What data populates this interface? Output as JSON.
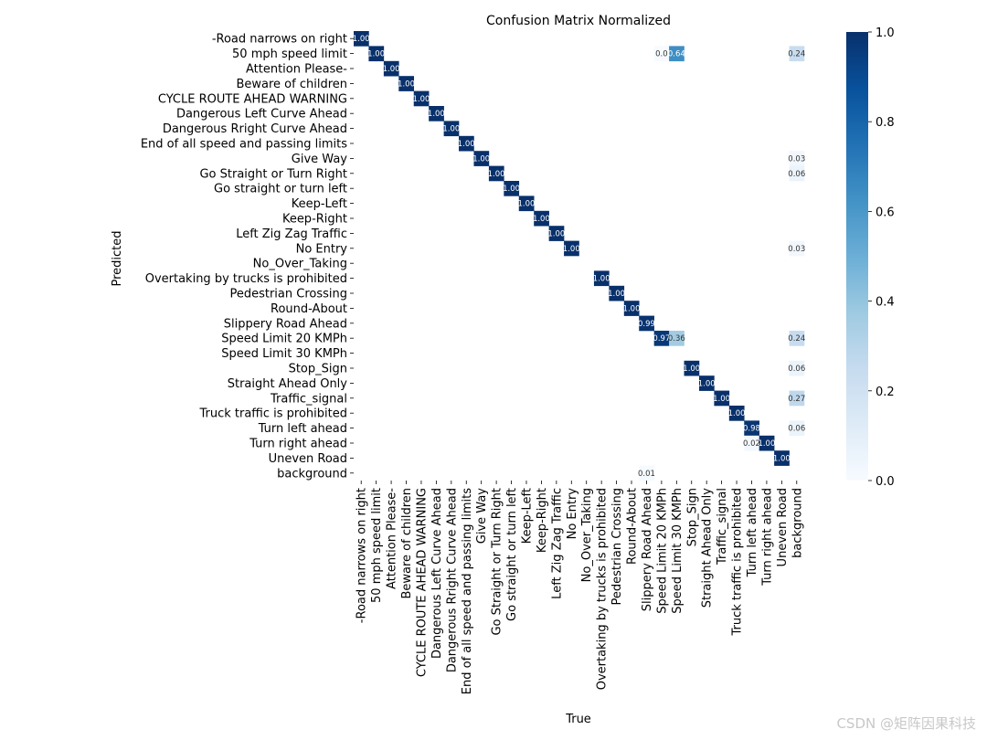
{
  "chart_data": {
    "type": "heatmap",
    "title": "Confusion Matrix Normalized",
    "xlabel": "True",
    "ylabel": "Predicted",
    "colormap": "Blues",
    "colors": {
      "low": "#f7fbff",
      "high": "#08306b"
    },
    "vmin": 0.0,
    "vmax": 1.0,
    "colorbar_ticks": [
      "0.0",
      "0.2",
      "0.4",
      "0.6",
      "0.8",
      "1.0"
    ],
    "labels": [
      "-Road narrows on right",
      "50 mph speed limit",
      "Attention Please-",
      "Beware of children",
      "CYCLE ROUTE AHEAD WARNING",
      "Dangerous Left Curve Ahead",
      "Dangerous Rright Curve Ahead",
      "End of all speed and passing limits",
      "Give Way",
      "Go Straight or Turn Right",
      "Go straight or turn left",
      "Keep-Left",
      "Keep-Right",
      "Left Zig Zag Traffic",
      "No Entry",
      "No_Over_Taking",
      "Overtaking by trucks is prohibited",
      "Pedestrian Crossing",
      "Round-About",
      "Slippery Road Ahead",
      "Speed Limit 20 KMPh",
      "Speed Limit 30 KMPh",
      "Stop_Sign",
      "Straight Ahead Only",
      "Traffic_signal",
      "Truck traffic is prohibited",
      "Turn left ahead",
      "Turn right ahead",
      "Uneven Road",
      "background"
    ],
    "cells": [
      {
        "row": 0,
        "col": 0,
        "value": 1.0,
        "label": "1.00"
      },
      {
        "row": 1,
        "col": 1,
        "value": 1.0,
        "label": "1.00"
      },
      {
        "row": 1,
        "col": 20,
        "value": 0.0,
        "label": "0.0"
      },
      {
        "row": 1,
        "col": 21,
        "value": 0.64,
        "label": "0.64"
      },
      {
        "row": 1,
        "col": 29,
        "value": 0.24,
        "label": "0.24"
      },
      {
        "row": 2,
        "col": 2,
        "value": 1.0,
        "label": "1.00"
      },
      {
        "row": 3,
        "col": 3,
        "value": 1.0,
        "label": "1.00"
      },
      {
        "row": 4,
        "col": 4,
        "value": 1.0,
        "label": "1.00"
      },
      {
        "row": 5,
        "col": 5,
        "value": 1.0,
        "label": "1.00"
      },
      {
        "row": 6,
        "col": 6,
        "value": 1.0,
        "label": "1.00"
      },
      {
        "row": 7,
        "col": 7,
        "value": 1.0,
        "label": "1.00"
      },
      {
        "row": 8,
        "col": 8,
        "value": 1.0,
        "label": "1.00"
      },
      {
        "row": 8,
        "col": 29,
        "value": 0.03,
        "label": "0.03"
      },
      {
        "row": 9,
        "col": 9,
        "value": 1.0,
        "label": "1.00"
      },
      {
        "row": 9,
        "col": 29,
        "value": 0.06,
        "label": "0.06"
      },
      {
        "row": 10,
        "col": 10,
        "value": 1.0,
        "label": "1.00"
      },
      {
        "row": 11,
        "col": 11,
        "value": 1.0,
        "label": "1.00"
      },
      {
        "row": 12,
        "col": 12,
        "value": 1.0,
        "label": "1.00"
      },
      {
        "row": 13,
        "col": 13,
        "value": 1.0,
        "label": "1.00"
      },
      {
        "row": 14,
        "col": 14,
        "value": 1.0,
        "label": "1.00"
      },
      {
        "row": 14,
        "col": 29,
        "value": 0.03,
        "label": "0.03"
      },
      {
        "row": 16,
        "col": 16,
        "value": 1.0,
        "label": "1.00"
      },
      {
        "row": 17,
        "col": 17,
        "value": 1.0,
        "label": "1.00"
      },
      {
        "row": 18,
        "col": 18,
        "value": 1.0,
        "label": "1.00"
      },
      {
        "row": 19,
        "col": 19,
        "value": 0.99,
        "label": "0.99"
      },
      {
        "row": 20,
        "col": 20,
        "value": 0.97,
        "label": "0.97"
      },
      {
        "row": 20,
        "col": 21,
        "value": 0.36,
        "label": "0.36"
      },
      {
        "row": 20,
        "col": 29,
        "value": 0.24,
        "label": "0.24"
      },
      {
        "row": 22,
        "col": 22,
        "value": 1.0,
        "label": "1.00"
      },
      {
        "row": 22,
        "col": 29,
        "value": 0.06,
        "label": "0.06"
      },
      {
        "row": 23,
        "col": 23,
        "value": 1.0,
        "label": "1.00"
      },
      {
        "row": 24,
        "col": 24,
        "value": 1.0,
        "label": "1.00"
      },
      {
        "row": 24,
        "col": 29,
        "value": 0.27,
        "label": "0.27"
      },
      {
        "row": 25,
        "col": 25,
        "value": 1.0,
        "label": "1.00"
      },
      {
        "row": 26,
        "col": 26,
        "value": 0.98,
        "label": "0.98"
      },
      {
        "row": 26,
        "col": 29,
        "value": 0.06,
        "label": "0.06"
      },
      {
        "row": 27,
        "col": 26,
        "value": 0.02,
        "label": "0.02"
      },
      {
        "row": 27,
        "col": 27,
        "value": 1.0,
        "label": "1.00"
      },
      {
        "row": 28,
        "col": 28,
        "value": 1.0,
        "label": "1.00"
      },
      {
        "row": 29,
        "col": 19,
        "value": 0.01,
        "label": "0.01"
      }
    ]
  },
  "watermark": "CSDN @矩阵因果科技"
}
